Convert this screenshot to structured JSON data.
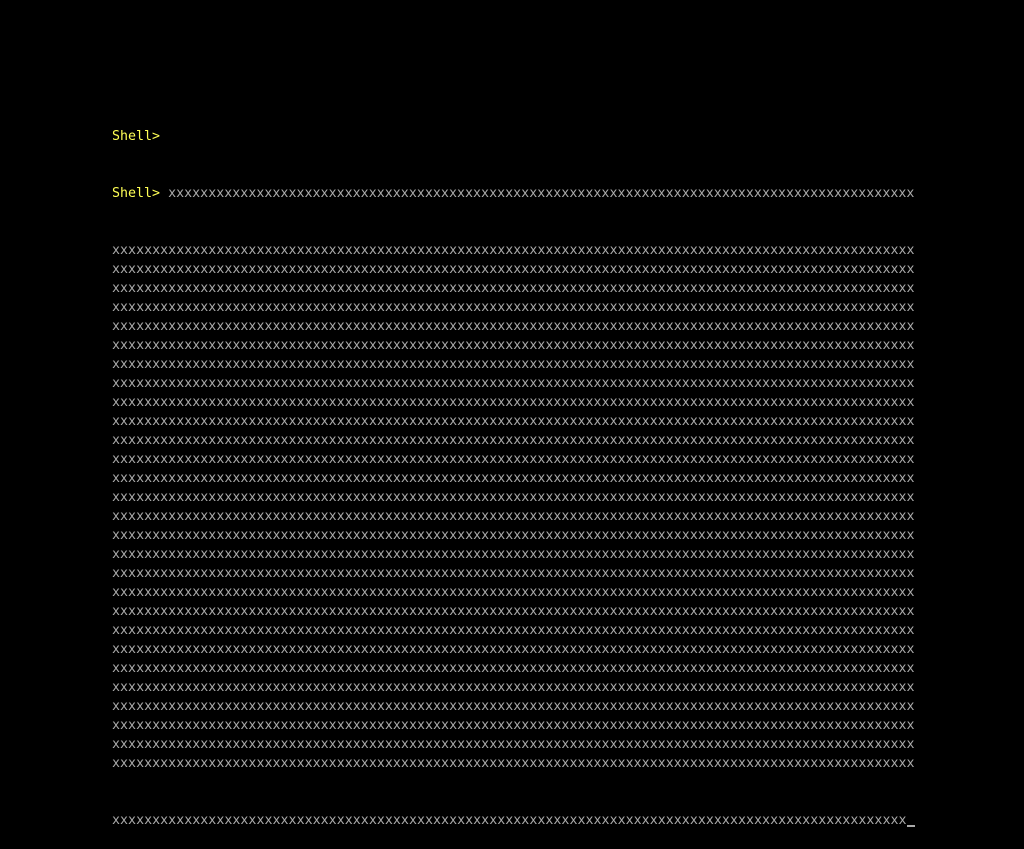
{
  "colors": {
    "prompt": "#FFFF55",
    "text": "#AAAAAA",
    "background": "#000000"
  },
  "shell": {
    "prompt": "Shell>",
    "first_input": "xxxxxxxxxxxxxxxxxxxxxxxxxxxxxxxxxxxxxxxxxxxxxxxxxxxxxxxxxxxxxxxxxxxxxxxxxxxxxxxxxxxxxxxxxxxxx",
    "wrapped_line": "xxxxxxxxxxxxxxxxxxxxxxxxxxxxxxxxxxxxxxxxxxxxxxxxxxxxxxxxxxxxxxxxxxxxxxxxxxxxxxxxxxxxxxxxxxxxxxxxxxxx",
    "wrapped_line_count": 28,
    "last_line": "xxxxxxxxxxxxxxxxxxxxxxxxxxxxxxxxxxxxxxxxxxxxxxxxxxxxxxxxxxxxxxxxxxxxxxxxxxxxxxxxxxxxxxxxxxxxxxxxxxx",
    "cursor": "underline"
  }
}
